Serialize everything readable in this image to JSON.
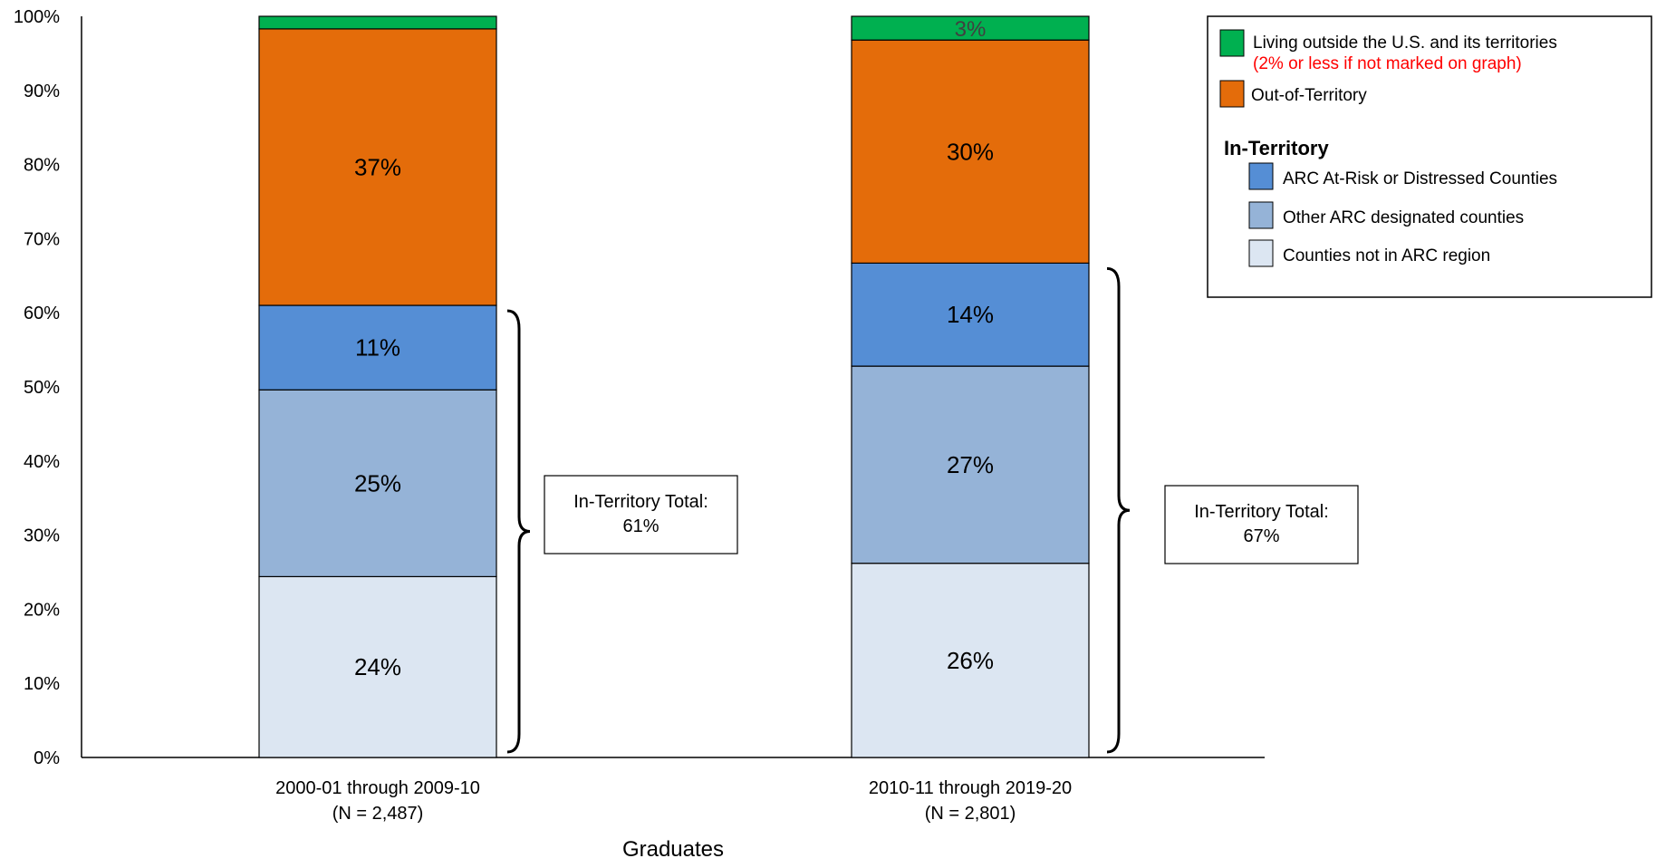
{
  "chart_data": {
    "type": "bar",
    "stacked": true,
    "categories": [
      "2000-01 through 2009-10",
      "2010-11 through 2019-20"
    ],
    "category_sublabels": [
      "(N = 2,487)",
      "(N = 2,801)"
    ],
    "xlabel": "Graduates",
    "ylabel": "",
    "ylim": [
      0,
      100
    ],
    "y_ticks": [
      "0%",
      "10%",
      "20%",
      "30%",
      "40%",
      "50%",
      "60%",
      "70%",
      "80%",
      "90%",
      "100%"
    ],
    "grid": false,
    "legend_position": "top-right",
    "series": [
      {
        "name": "Counties not in ARC region",
        "values": [
          24.4,
          26.2
        ],
        "labels": [
          "24%",
          "26%"
        ],
        "color": "#dce6f2"
      },
      {
        "name": "Other ARC designated counties",
        "values": [
          25.2,
          26.6
        ],
        "labels": [
          "25%",
          "27%"
        ],
        "color": "#95b3d7"
      },
      {
        "name": "ARC At-Risk or Distressed Counties",
        "values": [
          11.4,
          13.9
        ],
        "labels": [
          "11%",
          "14%"
        ],
        "color": "#558ed5"
      },
      {
        "name": "Out-of-Territory",
        "values": [
          37.3,
          30.1
        ],
        "labels": [
          "37%",
          "30%"
        ],
        "color": "#e46c0a"
      },
      {
        "name": "Living outside the U.S. and its territories",
        "values": [
          1.7,
          3.2
        ],
        "labels": [
          "",
          "3%"
        ],
        "color": "#00b050"
      }
    ],
    "totals": [
      {
        "label": "In-Territory Total:",
        "value": "61%"
      },
      {
        "label": "In-Territory Total:",
        "value": "67%"
      }
    ],
    "legend": {
      "note": "(2% or less if not marked on graph)",
      "note_color": "#ff0000",
      "group_heading": "In-Territory"
    }
  }
}
